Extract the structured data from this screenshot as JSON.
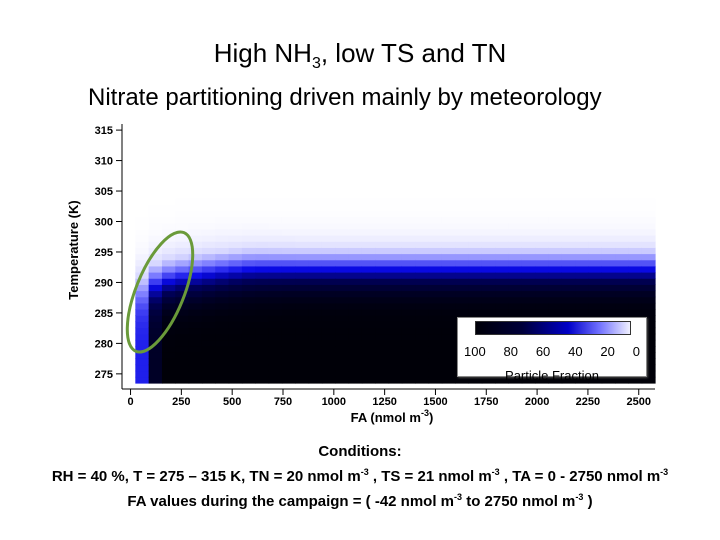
{
  "header": {
    "title_main": "High NH",
    "title_sub": "3",
    "title_rest": ", low TS and TN",
    "subtitle": "Nitrate partitioning driven mainly by meteorology"
  },
  "chart_data": {
    "type": "heatmap",
    "xlabel": "FA (nmol m",
    "xlabel_exp": "-3",
    "xlabel_end": ")",
    "ylabel": "Temperature (K)",
    "x_ticks": [
      0,
      250,
      500,
      750,
      1000,
      1250,
      1500,
      1750,
      2000,
      2250,
      2500
    ],
    "y_ticks": [
      275,
      280,
      285,
      290,
      295,
      300,
      305,
      310,
      315
    ],
    "xlim": [
      -42,
      2580
    ],
    "ylim": [
      273.5,
      316
    ],
    "value_label": "Particle Fraction",
    "colorbar_ticks": [
      "100",
      "80",
      "60",
      "40",
      "20",
      "0"
    ],
    "colors": {
      "high": "#000008",
      "mid": "#0000c8",
      "low": "#ffffff",
      "ellipse": "#6a9a3a"
    }
  },
  "conditions": {
    "line1": "Conditions:",
    "line2_a": "RH = 40 %, T = 275 – 315 K, TN = 20 nmol m",
    "line2_b": " , TS = 21 nmol m",
    "line2_c": " , TA = 0 - 2750 nmol m",
    "exp": "-3",
    "line3_a": "FA values during the campaign = ( -42 nmol m",
    "line3_b": " to 2750 nmol m",
    "line3_c": " )"
  }
}
